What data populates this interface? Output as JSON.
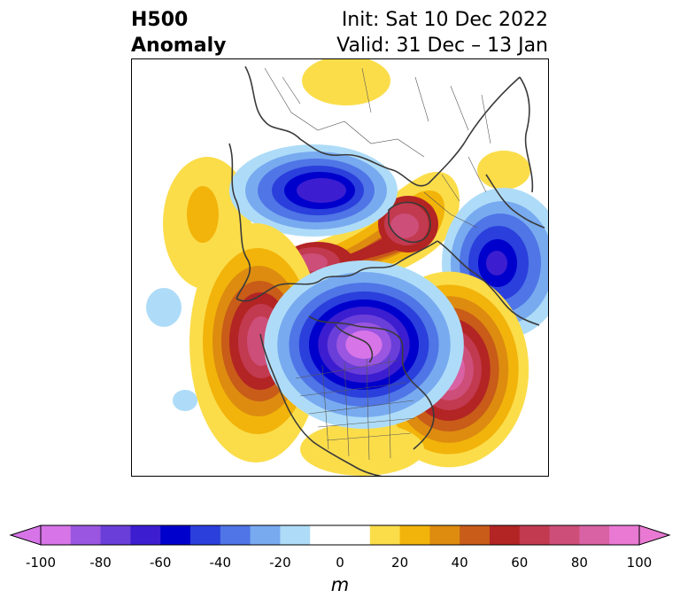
{
  "header": {
    "title_line1": "H500",
    "title_line2": "Anomaly",
    "init_text": "Init: Sat 10 Dec 2022",
    "valid_text": "Valid: 31 Dec – 13 Jan"
  },
  "map": {
    "projection": "polar-stereographic",
    "variable": "500 hPa geopotential height anomaly",
    "features": [
      {
        "name": "negative-anomaly-arctic-siberia",
        "sign": "negative",
        "peak_m": -70
      },
      {
        "name": "negative-anomaly-north-america",
        "sign": "negative",
        "peak_m": -100
      },
      {
        "name": "negative-anomaly-europe",
        "sign": "negative",
        "peak_m": -60
      },
      {
        "name": "positive-anomaly-northeast-pacific",
        "sign": "positive",
        "peak_m": 80
      },
      {
        "name": "positive-anomaly-north-atlantic",
        "sign": "positive",
        "peak_m": 90
      },
      {
        "name": "positive-anomaly-greenland-arctic",
        "sign": "positive",
        "peak_m": 80
      },
      {
        "name": "positive-anomaly-north-pole-ridge",
        "sign": "positive",
        "peak_m": 70
      },
      {
        "name": "positive-anomaly-western-pacific",
        "sign": "positive",
        "peak_m": 20
      },
      {
        "name": "positive-anomaly-asia-top",
        "sign": "positive",
        "peak_m": 10
      }
    ]
  },
  "colorbar": {
    "unit": "m",
    "ticks": [
      "-100",
      "-80",
      "-60",
      "-40",
      "-20",
      "0",
      "20",
      "40",
      "60",
      "80",
      "100"
    ],
    "colors": [
      "#d774e8",
      "#9a56e0",
      "#6a3ed8",
      "#3c1ed0",
      "#0000cc",
      "#2a3fdc",
      "#4f75e6",
      "#78aaf0",
      "#aedcf8",
      "#ffffff",
      "#ffffff",
      "#fbdd4a",
      "#f2b40a",
      "#dd8c10",
      "#c85c18",
      "#b32424",
      "#c23a50",
      "#cd4e78",
      "#d862a4",
      "#e979d3"
    ]
  }
}
